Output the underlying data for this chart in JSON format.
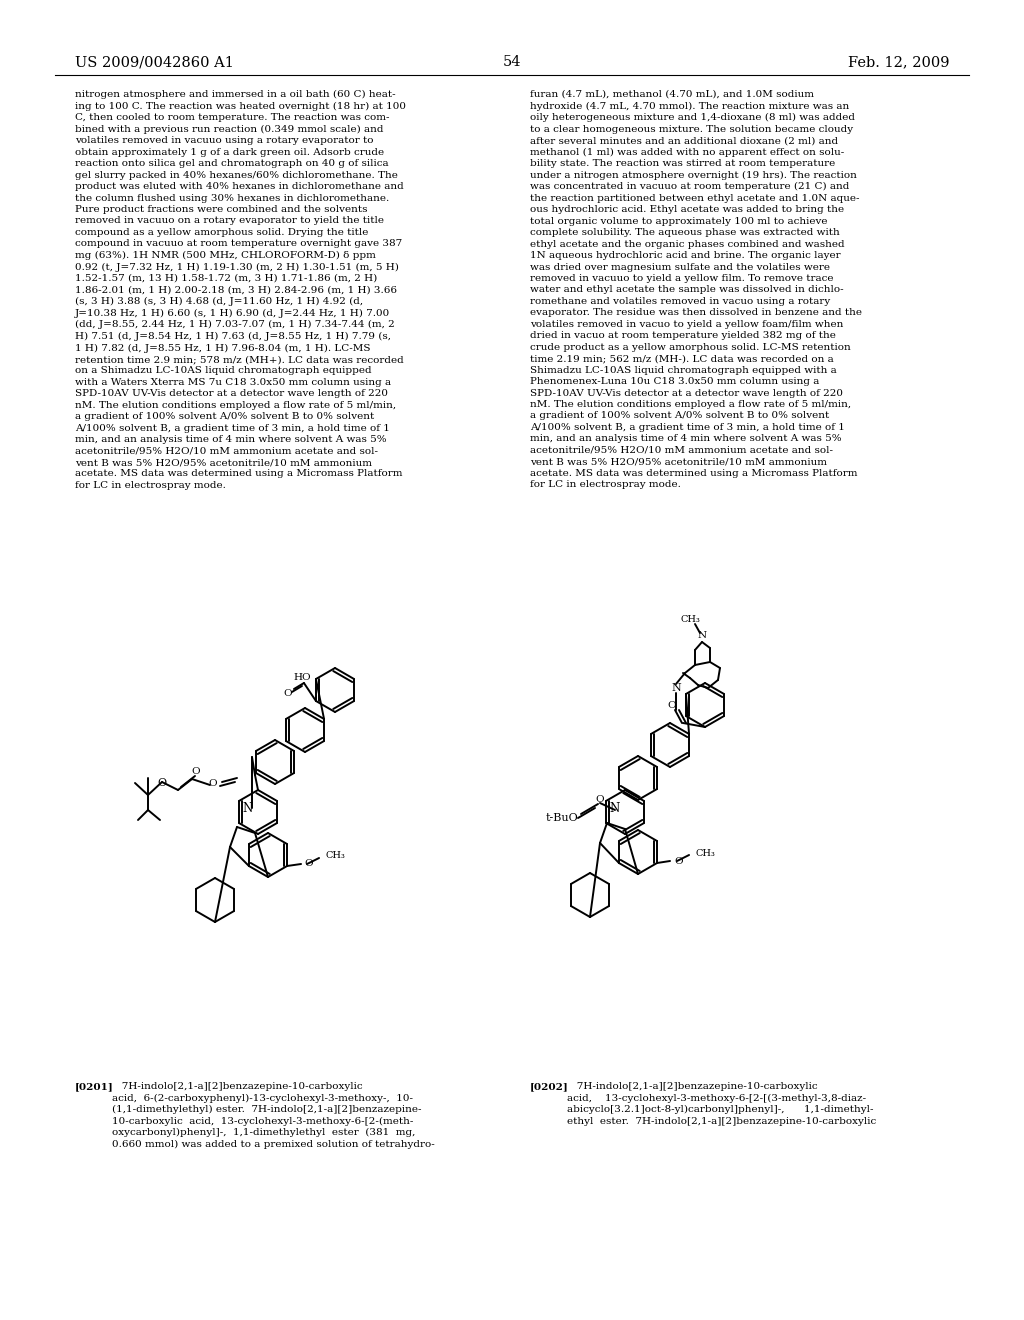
{
  "header_left": "US 2009/0042860 A1",
  "header_right": "Feb. 12, 2009",
  "page_number": "54",
  "background_color": "#ffffff",
  "text_color": "#000000",
  "left_column_text": "nitrogen atmosphere and immersed in a oil bath (60 C) heat-\ning to 100 C. The reaction was heated overnight (18 hr) at 100\nC, then cooled to room temperature. The reaction was com-\nbined with a previous run reaction (0.349 mmol scale) and\nvolatiles removed in vacuuo using a rotary evaporator to\nobtain approximately 1 g of a dark green oil. Adsorb crude\nreaction onto silica gel and chromatograph on 40 g of silica\ngel slurry packed in 40% hexanes/60% dichloromethane. The\nproduct was eluted with 40% hexanes in dichloromethane and\nthe column flushed using 30% hexanes in dichloromethane.\nPure product fractions were combined and the solvents\nremoved in vacuuo on a rotary evaporator to yield the title\ncompound as a yellow amorphous solid. Drying the title\ncompound in vacuuo at room temperature overnight gave 387\nmg (63%). 1H NMR (500 MHz, CHLOROFORM-D) δ ppm\n0.92 (t, J=7.32 Hz, 1 H) 1.19-1.30 (m, 2 H) 1.30-1.51 (m, 5 H)\n1.52-1.57 (m, 13 H) 1.58-1.72 (m, 3 H) 1.71-1.86 (m, 2 H)\n1.86-2.01 (m, 1 H) 2.00-2.18 (m, 3 H) 2.84-2.96 (m, 1 H) 3.66\n(s, 3 H) 3.88 (s, 3 H) 4.68 (d, J=11.60 Hz, 1 H) 4.92 (d,\nJ=10.38 Hz, 1 H) 6.60 (s, 1 H) 6.90 (d, J=2.44 Hz, 1 H) 7.00\n(dd, J=8.55, 2.44 Hz, 1 H) 7.03-7.07 (m, 1 H) 7.34-7.44 (m, 2\nH) 7.51 (d, J=8.54 Hz, 1 H) 7.63 (d, J=8.55 Hz, 1 H) 7.79 (s,\n1 H) 7.82 (d, J=8.55 Hz, 1 H) 7.96-8.04 (m, 1 H). LC-MS\nretention time 2.9 min; 578 m/z (MH+). LC data was recorded\non a Shimadzu LC-10AS liquid chromatograph equipped\nwith a Waters Xterra MS 7u C18 3.0x50 mm column using a\nSPD-10AV UV-Vis detector at a detector wave length of 220\nnM. The elution conditions employed a flow rate of 5 ml/min,\na gradient of 100% solvent A/0% solvent B to 0% solvent\nA/100% solvent B, a gradient time of 3 min, a hold time of 1\nmin, and an analysis time of 4 min where solvent A was 5%\nacetonitrile/95% H2O/10 mM ammonium acetate and sol-\nvent B was 5% H2O/95% acetonitrile/10 mM ammonium\nacetate. MS data was determined using a Micromass Platform\nfor LC in electrospray mode.",
  "right_column_text": "furan (4.7 mL), methanol (4.70 mL), and 1.0M sodium\nhydroxide (4.7 mL, 4.70 mmol). The reaction mixture was an\noily heterogeneous mixture and 1,4-dioxane (8 ml) was added\nto a clear homogeneous mixture. The solution became cloudy\nafter several minutes and an additional dioxane (2 ml) and\nmethanol (1 ml) was added with no apparent effect on solu-\nbility state. The reaction was stirred at room temperature\nunder a nitrogen atmosphere overnight (19 hrs). The reaction\nwas concentrated in vacuuo at room temperature (21 C) and\nthe reaction partitioned between ethyl acetate and 1.0N aque-\nous hydrochloric acid. Ethyl acetate was added to bring the\ntotal organic volume to approximately 100 ml to achieve\ncomplete solubility. The aqueous phase was extracted with\nethyl acetate and the organic phases combined and washed\n1N aqueous hydrochloric acid and brine. The organic layer\nwas dried over magnesium sulfate and the volatiles were\nremoved in vacuuo to yield a yellow film. To remove trace\nwater and ethyl acetate the sample was dissolved in dichlo-\nromethane and volatiles removed in vacuo using a rotary\nevaporator. The residue was then dissolved in benzene and the\nvolatiles removed in vacuo to yield a yellow foam/film when\ndried in vacuo at room temperature yielded 382 mg of the\ncrude product as a yellow amorphous solid. LC-MS retention\ntime 2.19 min; 562 m/z (MH-). LC data was recorded on a\nShimadzu LC-10AS liquid chromatograph equipped with a\nPhenomenex-Luna 10u C18 3.0x50 mm column using a\nSPD-10AV UV-Vis detector at a detector wave length of 220\nnM. The elution conditions employed a flow rate of 5 ml/min,\na gradient of 100% solvent A/0% solvent B to 0% solvent\nA/100% solvent B, a gradient time of 3 min, a hold time of 1\nmin, and an analysis time of 4 min where solvent A was 5%\nacetonitrile/95% H2O/10 mM ammonium acetate and sol-\nvent B was 5% H2O/95% acetonitrile/10 mM ammonium\nacetate. MS data was determined using a Micromass Platform\nfor LC in electrospray mode.",
  "caption_0201_bold": "[0201]",
  "caption_0201_text": "   7H-indolo[2,1-a][2]benzazepine-10-carboxylic\nacid,  6-(2-carboxyphenyl)-13-cyclohexyl-3-methoxy-,  10-\n(1,1-dimethylethyl) ester.  7H-indolo[2,1-a][2]benzazepine-\n10-carboxylic  acid,  13-cyclohexyl-3-methoxy-6-[2-(meth-\noxycarbonyl)phenyl]-,  1,1-dimethylethyl  ester  (381  mg,\n0.660 mmol) was added to a premixed solution of tetrahydro-",
  "caption_0202_bold": "[0202]",
  "caption_0202_text": "   7H-indolo[2,1-a][2]benzazepine-10-carboxylic\nacid,    13-cyclohexyl-3-methoxy-6-[2-[(3-methyl-3,8-diaz-\nabicyclo[3.2.1]oct-8-yl)carbonyl]phenyl]-,      1,1-dimethyl-\nethyl  ester.  7H-indolo[2,1-a][2]benzazepine-10-carboxylic"
}
